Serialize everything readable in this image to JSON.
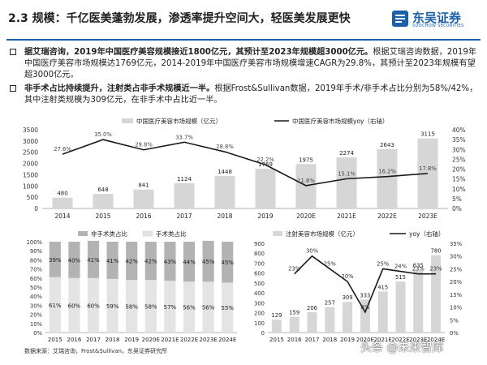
{
  "header": {
    "title": "2.3 规模：千亿医美蓬勃发展，渗透率提升空间大，轻医美发展更快",
    "logo_text": "东吴证券",
    "logo_sub": "SOOCHOW SECURITIES",
    "colors": {
      "brand": "#1a5fa8"
    }
  },
  "bullets": [
    {
      "bold": "据艾瑞咨询，2019年中国医疗美容规模接近1800亿元，其预计至2023年规模超3000亿元。",
      "normal": "根据艾瑞咨询数据，2019年中国医疗美容市场规模达1769亿元，2014-2019年中国医疗美容市场规模增速CAGR为29.8%，其预计至2023年规模有望超3000亿元。"
    },
    {
      "bold": "非手术占比持续提升，注射类占非手术规模近一半。",
      "normal": "根据Frost&Sullivan数据，2019年手术/非手术占比分别为58%/42%，其中注射类规模为309亿元，在非手术中占比近一半。"
    }
  ],
  "source": "数据来源：艾瑞咨询，Frost&Sullivan，东吴证券研究所",
  "watermark": "头条 @未来智库",
  "chart_data": [
    {
      "type": "bar",
      "title": "",
      "legend": [
        "中国医疗美容市场规模（亿元）",
        "中国医疗美容市场规模yoy（右轴）"
      ],
      "categories": [
        "2014",
        "2015",
        "2016",
        "2017",
        "2018",
        "2019",
        "2020E",
        "2021E",
        "2022E",
        "2023E"
      ],
      "series": [
        {
          "name": "中国医疗美容市场规模（亿元）",
          "type": "bar",
          "values": [
            480,
            648,
            841,
            1124,
            1448,
            1769,
            1975,
            2274,
            2643,
            3115
          ],
          "labels": [
            "480",
            "648",
            "841",
            "1124",
            "1448",
            "1769",
            "1975",
            "2274",
            "2643",
            "3115"
          ]
        },
        {
          "name": "中国医疗美容市场规模yoy（右轴）",
          "type": "line",
          "axis": "right",
          "values": [
            27.6,
            35.0,
            29.8,
            33.7,
            28.8,
            22.2,
            11.6,
            15.1,
            16.2,
            17.8
          ],
          "labels": [
            "27.6%",
            "35.0%",
            "29.8%",
            "33.7%",
            "28.8%",
            "22.2%",
            "11.6%",
            "15.1%",
            "16.2%",
            "17.8%"
          ]
        }
      ],
      "ylim": [
        0,
        3500
      ],
      "yticks": [
        "0",
        "500",
        "1000",
        "1500",
        "2000",
        "2500",
        "3000",
        "3500"
      ],
      "ylim_right": [
        0,
        40
      ],
      "yticks_right": [
        "0%",
        "5%",
        "10%",
        "15%",
        "20%",
        "25%",
        "30%",
        "35%",
        "40%"
      ],
      "colors": {
        "bar": "#d6d6d6",
        "line": "#1a1a1a"
      }
    },
    {
      "type": "bar",
      "stacked": true,
      "title": "",
      "legend": [
        "非手术类占比",
        "手术类占比"
      ],
      "categories": [
        "2015",
        "2016",
        "2017",
        "2018",
        "2019",
        "2020E",
        "2021E",
        "2022E",
        "2023E",
        "2024E"
      ],
      "series": [
        {
          "name": "非手术类占比",
          "values": [
            39,
            40,
            41,
            41,
            42,
            42,
            43,
            44,
            45,
            45
          ],
          "labels": [
            "39%",
            "40%",
            "41%",
            "41%",
            "42%",
            "42%",
            "43%",
            "44%",
            "45%",
            "45%"
          ]
        },
        {
          "name": "手术类占比",
          "values": [
            61,
            60,
            60,
            59,
            58,
            58,
            57,
            56,
            56,
            55
          ],
          "labels": [
            "61%",
            "60%",
            "60%",
            "59%",
            "58%",
            "58%",
            "57%",
            "56%",
            "56%",
            "55%"
          ]
        }
      ],
      "ylim": [
        0,
        100
      ],
      "yticks": [
        "0%",
        "10%",
        "20%",
        "30%",
        "40%",
        "50%",
        "60%",
        "70%",
        "80%",
        "90%",
        "100%"
      ],
      "colors": {
        "nonsurgical": "#b3b3b3",
        "surgical": "#e4e4e4"
      }
    },
    {
      "type": "bar",
      "title": "",
      "legend": [
        "注射美容市场规模（亿元）",
        "yoy（右轴）"
      ],
      "categories": [
        "2015",
        "2016",
        "2017",
        "2018",
        "2019",
        "2020E",
        "2021E",
        "2022E",
        "2023E",
        "2024E"
      ],
      "series": [
        {
          "name": "注射美容市场规模（亿元）",
          "type": "bar",
          "values": [
            129,
            159,
            206,
            257,
            309,
            333,
            415,
            515,
            635,
            780
          ],
          "labels": [
            "129",
            "159",
            "206",
            "257",
            "309",
            "333",
            "415",
            "515",
            "635",
            "780"
          ]
        },
        {
          "name": "yoy（右轴）",
          "type": "line",
          "axis": "right",
          "values": [
            null,
            23,
            30,
            25,
            20,
            8,
            25,
            24,
            23,
            23
          ],
          "labels": [
            "",
            "23%",
            "30%",
            "25%",
            "20%",
            "8%",
            "25%",
            "24%",
            "23%",
            "23%"
          ]
        }
      ],
      "ylim": [
        0,
        900
      ],
      "yticks": [
        "0",
        "100",
        "200",
        "300",
        "400",
        "500",
        "600",
        "700",
        "800",
        "900"
      ],
      "ylim_right": [
        0,
        35
      ],
      "yticks_right": [
        "0%",
        "5%",
        "10%",
        "15%",
        "20%",
        "25%",
        "30%",
        "35%"
      ],
      "colors": {
        "bar": "#d6d6d6",
        "line": "#1a1a1a"
      }
    }
  ]
}
